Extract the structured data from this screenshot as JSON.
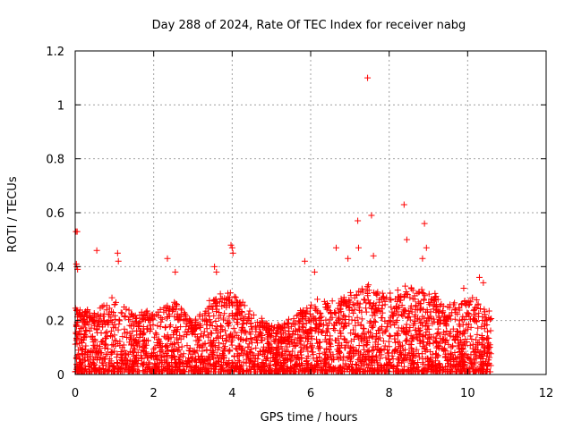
{
  "chart_data": {
    "type": "scatter",
    "title": "Day 288 of 2024, Rate Of TEC Index for receiver nabg",
    "xlabel": "GPS time / hours",
    "ylabel": "ROTI / TECUs",
    "xlim": [
      0,
      12
    ],
    "ylim": [
      0,
      1.2
    ],
    "x_ticks": [
      "0",
      "2",
      "4",
      "6",
      "8",
      "10",
      "12"
    ],
    "y_ticks": [
      "0",
      "0.2",
      "0.4",
      "0.6",
      "0.8",
      "1",
      "1.2"
    ],
    "grid": true,
    "marker": "+",
    "color": "#ff0000",
    "series": [
      {
        "name": "ROTI",
        "points": [
          [
            0.02,
            0.53
          ],
          [
            0.05,
            0.53
          ],
          [
            0.03,
            0.41
          ],
          [
            0.06,
            0.39
          ],
          [
            0.04,
            0.4
          ],
          [
            0.55,
            0.46
          ],
          [
            1.08,
            0.45
          ],
          [
            1.1,
            0.42
          ],
          [
            2.35,
            0.43
          ],
          [
            2.55,
            0.38
          ],
          [
            3.55,
            0.4
          ],
          [
            3.6,
            0.38
          ],
          [
            3.97,
            0.48
          ],
          [
            4.0,
            0.47
          ],
          [
            4.02,
            0.45
          ],
          [
            5.85,
            0.42
          ],
          [
            6.1,
            0.38
          ],
          [
            6.65,
            0.47
          ],
          [
            6.95,
            0.43
          ],
          [
            7.2,
            0.57
          ],
          [
            7.22,
            0.47
          ],
          [
            7.45,
            1.1
          ],
          [
            7.55,
            0.59
          ],
          [
            7.6,
            0.44
          ],
          [
            8.38,
            0.63
          ],
          [
            8.45,
            0.5
          ],
          [
            8.9,
            0.56
          ],
          [
            8.85,
            0.43
          ],
          [
            8.95,
            0.47
          ],
          [
            9.9,
            0.32
          ],
          [
            10.3,
            0.36
          ],
          [
            10.4,
            0.34
          ]
        ],
        "dense_band": {
          "x_range": [
            0,
            10.6
          ],
          "note": "dense cloud of several thousand points, mostly 0.0–0.3 TECUs",
          "profile": [
            [
              0.0,
              0.25
            ],
            [
              0.5,
              0.22
            ],
            [
              1.0,
              0.28
            ],
            [
              1.5,
              0.22
            ],
            [
              2.0,
              0.24
            ],
            [
              2.5,
              0.26
            ],
            [
              3.0,
              0.2
            ],
            [
              3.5,
              0.28
            ],
            [
              4.0,
              0.3
            ],
            [
              4.5,
              0.22
            ],
            [
              5.0,
              0.18
            ],
            [
              5.5,
              0.2
            ],
            [
              6.0,
              0.26
            ],
            [
              6.5,
              0.28
            ],
            [
              7.0,
              0.3
            ],
            [
              7.5,
              0.32
            ],
            [
              8.0,
              0.3
            ],
            [
              8.5,
              0.33
            ],
            [
              9.0,
              0.3
            ],
            [
              9.5,
              0.26
            ],
            [
              10.0,
              0.28
            ],
            [
              10.5,
              0.25
            ]
          ]
        }
      }
    ]
  }
}
